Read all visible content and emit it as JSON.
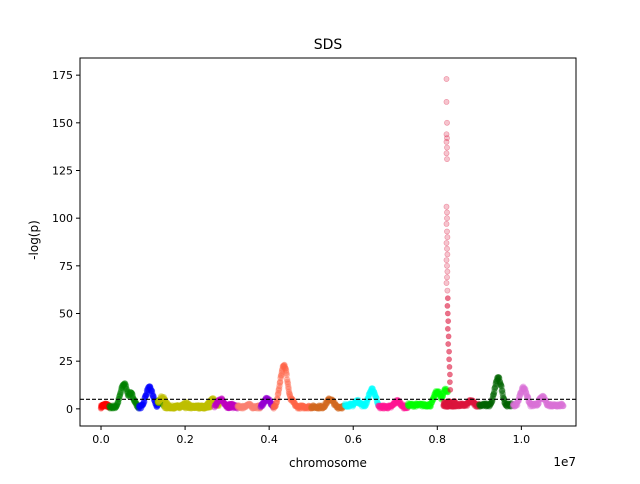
{
  "chart_data": {
    "type": "scatter",
    "title": "SDS",
    "xlabel": "chromosome",
    "ylabel": "-log(p)",
    "x_offset_label": "1e7",
    "xlim": [
      -500000,
      11300000
    ],
    "ylim": [
      -9,
      184
    ],
    "x_ticks": [
      0,
      2000000,
      4000000,
      6000000,
      8000000,
      10000000
    ],
    "x_tick_labels": [
      "0.0",
      "0.2",
      "0.4",
      "0.6",
      "0.8",
      "1.0"
    ],
    "y_ticks": [
      0,
      25,
      50,
      75,
      100,
      125,
      150,
      175
    ],
    "y_tick_labels": [
      "0",
      "25",
      "50",
      "75",
      "100",
      "125",
      "150",
      "175"
    ],
    "threshold": 5,
    "grid": false,
    "legend": "none",
    "segments": [
      {
        "color": "#ff0000",
        "x_start": 0,
        "x_end": 200000,
        "base": 1,
        "peaks": [
          [
            100000,
            2
          ]
        ]
      },
      {
        "color": "#008000",
        "x_start": 200000,
        "x_end": 900000,
        "base": 1,
        "peaks": [
          [
            550000,
            13
          ],
          [
            700000,
            8
          ]
        ]
      },
      {
        "color": "#0000ff",
        "x_start": 900000,
        "x_end": 1350000,
        "base": 1,
        "peaks": [
          [
            1150000,
            11
          ]
        ]
      },
      {
        "color": "#008000",
        "x_start": 1350000,
        "x_end": 1500000,
        "base": 1,
        "peaks": [
          [
            1400000,
            4
          ]
        ]
      },
      {
        "color": "#bfbf00",
        "x_start": 1350000,
        "x_end": 2800000,
        "base": 1,
        "peaks": [
          [
            1450000,
            6
          ],
          [
            2650000,
            5
          ]
        ]
      },
      {
        "color": "#bfbf00",
        "x_start": 1500000,
        "x_end": 2600000,
        "base": 1,
        "peaks": [
          [
            2000000,
            3
          ]
        ]
      },
      {
        "color": "#bf00bf",
        "x_start": 2700000,
        "x_end": 3150000,
        "base": 1,
        "peaks": [
          [
            2850000,
            5
          ]
        ]
      },
      {
        "color": "#bf00bf",
        "x_start": 3000000,
        "x_end": 3250000,
        "base": 1,
        "peaks": [
          [
            3100000,
            2
          ]
        ]
      },
      {
        "color": "#fa8072",
        "x_start": 3250000,
        "x_end": 3800000,
        "base": 1,
        "peaks": [
          [
            3500000,
            2
          ]
        ]
      },
      {
        "color": "#9400d3",
        "x_start": 3800000,
        "x_end": 4100000,
        "base": 1,
        "peaks": [
          [
            3950000,
            5
          ]
        ]
      },
      {
        "color": "#ff6347",
        "x_start": 4100000,
        "x_end": 5000000,
        "base": 1,
        "peaks": [
          [
            4350000,
            23
          ],
          [
            4500000,
            5
          ]
        ]
      },
      {
        "color": "#d2691e",
        "x_start": 5000000,
        "x_end": 5800000,
        "base": 1,
        "peaks": [
          [
            5450000,
            5
          ]
        ]
      },
      {
        "color": "#00ffff",
        "x_start": 5800000,
        "x_end": 6600000,
        "base": 2,
        "peaks": [
          [
            6450000,
            10
          ],
          [
            6100000,
            4
          ]
        ]
      },
      {
        "color": "#ff1493",
        "x_start": 6600000,
        "x_end": 7300000,
        "base": 1,
        "peaks": [
          [
            7050000,
            4
          ]
        ]
      },
      {
        "color": "#00ff00",
        "x_start": 7300000,
        "x_end": 8250000,
        "base": 2,
        "peaks": [
          [
            8000000,
            9
          ],
          [
            8200000,
            10
          ]
        ]
      },
      {
        "color": "#dc143c",
        "x_start": 8250000,
        "x_end": 9000000,
        "base": 2,
        "peaks": [
          [
            8800000,
            4
          ]
        ]
      },
      {
        "color": "#006400",
        "x_start": 9000000,
        "x_end": 9800000,
        "base": 2,
        "peaks": [
          [
            9450000,
            16
          ]
        ]
      },
      {
        "color": "#da70d6",
        "x_start": 9800000,
        "x_end": 11000000,
        "base": 2,
        "peaks": [
          [
            10050000,
            11
          ],
          [
            10500000,
            6
          ]
        ]
      }
    ],
    "spike": {
      "color": "#dc143c",
      "x_start": 8150000,
      "x_end": 8450000,
      "points": [
        [
          8220000,
          173
        ],
        [
          8220000,
          161
        ],
        [
          8230000,
          150
        ],
        [
          8220000,
          144
        ],
        [
          8230000,
          142
        ],
        [
          8220000,
          140
        ],
        [
          8230000,
          137
        ],
        [
          8220000,
          134
        ],
        [
          8230000,
          131
        ],
        [
          8220000,
          106
        ],
        [
          8230000,
          103
        ],
        [
          8230000,
          100
        ],
        [
          8220000,
          97
        ],
        [
          8230000,
          93
        ],
        [
          8240000,
          90
        ],
        [
          8220000,
          87
        ],
        [
          8230000,
          84
        ],
        [
          8240000,
          81
        ],
        [
          8220000,
          78
        ],
        [
          8230000,
          75
        ],
        [
          8240000,
          72
        ],
        [
          8230000,
          69
        ],
        [
          8220000,
          66
        ],
        [
          8240000,
          62
        ],
        [
          8250000,
          58
        ],
        [
          8240000,
          54
        ],
        [
          8250000,
          50
        ],
        [
          8260000,
          46
        ],
        [
          8250000,
          42
        ],
        [
          8270000,
          38
        ],
        [
          8260000,
          34
        ],
        [
          8280000,
          30
        ],
        [
          8280000,
          26
        ],
        [
          8290000,
          22
        ],
        [
          8300000,
          18
        ],
        [
          8300000,
          14
        ],
        [
          8310000,
          10
        ]
      ]
    }
  }
}
